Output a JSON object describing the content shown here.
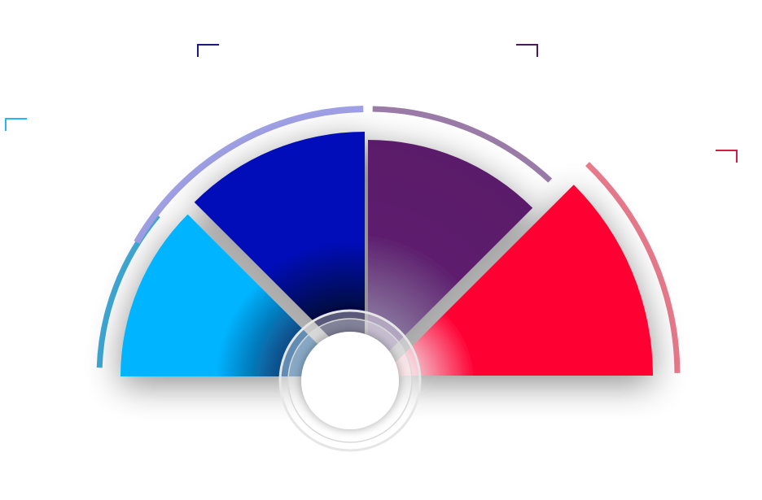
{
  "diagram": {
    "type": "semicircle-infographic",
    "segments": [
      {
        "id": "segment-1",
        "color": "#00b4ff",
        "outer_arc_color": "#3fa9d6",
        "corner_color": "#29b6f6"
      },
      {
        "id": "segment-2",
        "color": "#0010b8",
        "outer_arc_color": "#9fa0e6",
        "corner_color": "#1a1a7a"
      },
      {
        "id": "segment-3",
        "color": "#5e1f6e",
        "outer_arc_color": "#9a7ba8",
        "corner_color": "#4a1a5a"
      },
      {
        "id": "segment-4",
        "color": "#ff0033",
        "outer_arc_color": "#e87a8c",
        "corner_color": "#d81b45"
      }
    ],
    "center_hub": {
      "fill": "#ffffff",
      "ring": "#e6e6e6"
    }
  }
}
